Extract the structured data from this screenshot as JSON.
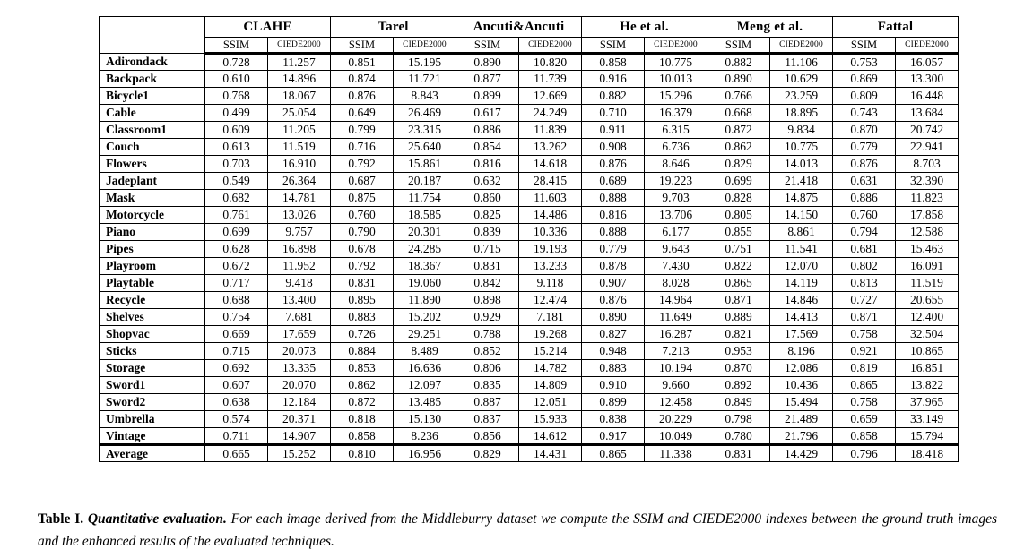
{
  "table": {
    "methods": [
      "CLAHE",
      "Tarel",
      "Ancuti&Ancuti",
      "He et al.",
      "Meng et al.",
      "Fattal"
    ],
    "metrics": [
      "SSIM",
      "CIEDE2000"
    ],
    "rows": [
      {
        "label": "Adirondack",
        "values": [
          "0.728",
          "11.257",
          "0.851",
          "15.195",
          "0.890",
          "10.820",
          "0.858",
          "10.775",
          "0.882",
          "11.106",
          "0.753",
          "16.057"
        ]
      },
      {
        "label": "Backpack",
        "values": [
          "0.610",
          "14.896",
          "0.874",
          "11.721",
          "0.877",
          "11.739",
          "0.916",
          "10.013",
          "0.890",
          "10.629",
          "0.869",
          "13.300"
        ]
      },
      {
        "label": "Bicycle1",
        "values": [
          "0.768",
          "18.067",
          "0.876",
          "8.843",
          "0.899",
          "12.669",
          "0.882",
          "15.296",
          "0.766",
          "23.259",
          "0.809",
          "16.448"
        ]
      },
      {
        "label": "Cable",
        "values": [
          "0.499",
          "25.054",
          "0.649",
          "26.469",
          "0.617",
          "24.249",
          "0.710",
          "16.379",
          "0.668",
          "18.895",
          "0.743",
          "13.684"
        ]
      },
      {
        "label": "Classroom1",
        "values": [
          "0.609",
          "11.205",
          "0.799",
          "23.315",
          "0.886",
          "11.839",
          "0.911",
          "6.315",
          "0.872",
          "9.834",
          "0.870",
          "20.742"
        ]
      },
      {
        "label": "Couch",
        "values": [
          "0.613",
          "11.519",
          "0.716",
          "25.640",
          "0.854",
          "13.262",
          "0.908",
          "6.736",
          "0.862",
          "10.775",
          "0.779",
          "22.941"
        ]
      },
      {
        "label": "Flowers",
        "values": [
          "0.703",
          "16.910",
          "0.792",
          "15.861",
          "0.816",
          "14.618",
          "0.876",
          "8.646",
          "0.829",
          "14.013",
          "0.876",
          "8.703"
        ]
      },
      {
        "label": "Jadeplant",
        "values": [
          "0.549",
          "26.364",
          "0.687",
          "20.187",
          "0.632",
          "28.415",
          "0.689",
          "19.223",
          "0.699",
          "21.418",
          "0.631",
          "32.390"
        ]
      },
      {
        "label": "Mask",
        "values": [
          "0.682",
          "14.781",
          "0.875",
          "11.754",
          "0.860",
          "11.603",
          "0.888",
          "9.703",
          "0.828",
          "14.875",
          "0.886",
          "11.823"
        ]
      },
      {
        "label": "Motorcycle",
        "values": [
          "0.761",
          "13.026",
          "0.760",
          "18.585",
          "0.825",
          "14.486",
          "0.816",
          "13.706",
          "0.805",
          "14.150",
          "0.760",
          "17.858"
        ]
      },
      {
        "label": "Piano",
        "values": [
          "0.699",
          "9.757",
          "0.790",
          "20.301",
          "0.839",
          "10.336",
          "0.888",
          "6.177",
          "0.855",
          "8.861",
          "0.794",
          "12.588"
        ]
      },
      {
        "label": "Pipes",
        "values": [
          "0.628",
          "16.898",
          "0.678",
          "24.285",
          "0.715",
          "19.193",
          "0.779",
          "9.643",
          "0.751",
          "11.541",
          "0.681",
          "15.463"
        ]
      },
      {
        "label": "Playroom",
        "values": [
          "0.672",
          "11.952",
          "0.792",
          "18.367",
          "0.831",
          "13.233",
          "0.878",
          "7.430",
          "0.822",
          "12.070",
          "0.802",
          "16.091"
        ]
      },
      {
        "label": "Playtable",
        "values": [
          "0.717",
          "9.418",
          "0.831",
          "19.060",
          "0.842",
          "9.118",
          "0.907",
          "8.028",
          "0.865",
          "14.119",
          "0.813",
          "11.519"
        ]
      },
      {
        "label": "Recycle",
        "values": [
          "0.688",
          "13.400",
          "0.895",
          "11.890",
          "0.898",
          "12.474",
          "0.876",
          "14.964",
          "0.871",
          "14.846",
          "0.727",
          "20.655"
        ]
      },
      {
        "label": "Shelves",
        "values": [
          "0.754",
          "7.681",
          "0.883",
          "15.202",
          "0.929",
          "7.181",
          "0.890",
          "11.649",
          "0.889",
          "14.413",
          "0.871",
          "12.400"
        ]
      },
      {
        "label": "Shopvac",
        "values": [
          "0.669",
          "17.659",
          "0.726",
          "29.251",
          "0.788",
          "19.268",
          "0.827",
          "16.287",
          "0.821",
          "17.569",
          "0.758",
          "32.504"
        ]
      },
      {
        "label": "Sticks",
        "values": [
          "0.715",
          "20.073",
          "0.884",
          "8.489",
          "0.852",
          "15.214",
          "0.948",
          "7.213",
          "0.953",
          "8.196",
          "0.921",
          "10.865"
        ]
      },
      {
        "label": "Storage",
        "values": [
          "0.692",
          "13.335",
          "0.853",
          "16.636",
          "0.806",
          "14.782",
          "0.883",
          "10.194",
          "0.870",
          "12.086",
          "0.819",
          "16.851"
        ]
      },
      {
        "label": "Sword1",
        "values": [
          "0.607",
          "20.070",
          "0.862",
          "12.097",
          "0.835",
          "14.809",
          "0.910",
          "9.660",
          "0.892",
          "10.436",
          "0.865",
          "13.822"
        ]
      },
      {
        "label": "Sword2",
        "values": [
          "0.638",
          "12.184",
          "0.872",
          "13.485",
          "0.887",
          "12.051",
          "0.899",
          "12.458",
          "0.849",
          "15.494",
          "0.758",
          "37.965"
        ]
      },
      {
        "label": "Umbrella",
        "values": [
          "0.574",
          "20.371",
          "0.818",
          "15.130",
          "0.837",
          "15.933",
          "0.838",
          "20.229",
          "0.798",
          "21.489",
          "0.659",
          "33.149"
        ]
      },
      {
        "label": "Vintage",
        "values": [
          "0.711",
          "14.907",
          "0.858",
          "8.236",
          "0.856",
          "14.612",
          "0.917",
          "10.049",
          "0.780",
          "21.796",
          "0.858",
          "15.794"
        ]
      }
    ],
    "average": {
      "label": "Average",
      "values": [
        "0.665",
        "15.252",
        "0.810",
        "16.956",
        "0.829",
        "14.431",
        "0.865",
        "11.338",
        "0.831",
        "14.429",
        "0.796",
        "18.418"
      ]
    }
  },
  "caption": {
    "label": "Table I.",
    "title": " Quantitative evaluation.",
    "text": " For each image derived from the Middleburry dataset we compute the SSIM and CIEDE2000 indexes between the ground truth images and the enhanced results of the evaluated techniques."
  }
}
